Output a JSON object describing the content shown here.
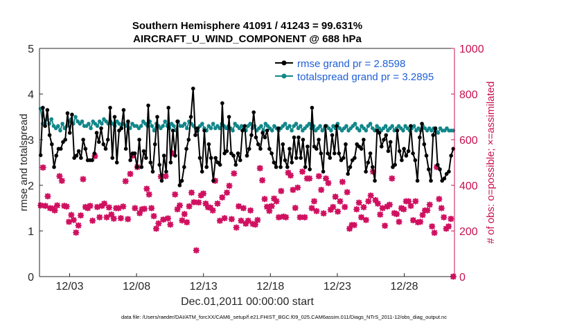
{
  "chart_data": {
    "type": "line",
    "title_line1": "Southern Hemisphere 41091 / 41243 = 99.631%",
    "title_line2": "AIRCRAFT_U_WIND_COMPONENT @ 688 hPa",
    "xlabel": "Dec.01,2011 00:00:00 start",
    "ylabel_left": "rmse and totalspread",
    "ylabel_right": "# of obs: o=possible; ×=assimilated",
    "footer": "data file: /Users/raeder/DAI/ATM_forcXX/CAM6_setup/f.e21.FHIST_BGC.f09_025.CAM6assim.011/Diags_NTrS_2011-12/obs_diag_output.nc",
    "xlim": [
      0.75,
      31.75
    ],
    "ylim_left": [
      0,
      5
    ],
    "ylim_right": [
      0,
      1000
    ],
    "xticks": [
      3,
      8,
      13,
      18,
      23,
      28
    ],
    "xtick_labels": [
      "12/03",
      "12/08",
      "12/13",
      "12/18",
      "12/23",
      "12/28"
    ],
    "yticks_left": [
      "0",
      "1",
      "2",
      "3",
      "4",
      "5"
    ],
    "yticks_right": [
      "0",
      "200",
      "400",
      "600",
      "800",
      "1000"
    ],
    "colors": {
      "rmse": "#000000",
      "spread": "#12878a",
      "obs": "#d01060",
      "legend_text": "#1f5fd6",
      "right_axis": "#c8104f"
    },
    "series": [
      {
        "name": "rmse",
        "legend": "rmse grand pr = 2.8598",
        "axis": "left",
        "values": [
          2.66,
          3.7,
          3.3,
          3.65,
          3.1,
          2.9,
          2.4,
          2.65,
          2.8,
          2.8,
          2.95,
          3.0,
          3.58,
          3.15,
          3.55,
          2.6,
          2.65,
          2.75,
          2.6,
          3.0,
          2.8,
          2.55,
          2.55,
          2.55,
          2.7,
          3.15,
          2.95,
          3.25,
          2.9,
          2.8,
          3.0,
          3.7,
          2.6,
          3.5,
          2.5,
          3.2,
          3.25,
          3.65,
          2.8,
          3.4,
          2.55,
          2.7,
          2.7,
          2.4,
          3.0,
          2.4,
          2.75,
          2.6,
          3.75,
          2.5,
          2.3,
          2.9,
          3.5,
          2.45,
          2.1,
          2.65,
          2.3,
          3.7,
          2.5,
          3.2,
          2.65,
          3.4,
          2.0,
          2.1,
          2.4,
          2.8,
          3.0,
          3.5,
          4.12,
          3.1,
          3.25,
          2.6,
          2.3,
          3.2,
          2.4,
          2.9,
          2.6,
          2.1,
          2.6,
          2.5,
          2.45,
          3.8,
          2.7,
          2.75,
          3.5,
          2.7,
          2.65,
          2.45,
          2.7,
          2.55,
          3.2,
          3.3,
          2.65,
          2.8,
          3.1,
          3.6,
          3.05,
          2.9,
          2.8,
          3.15,
          3.05,
          3.2,
          2.8,
          2.7,
          2.5,
          2.4,
          3.25,
          2.4,
          2.9,
          2.55,
          2.4,
          2.8,
          2.5,
          3.05,
          2.6,
          3.05,
          2.6,
          3.0,
          2.4,
          2.85,
          2.35,
          3.7,
          2.85,
          2.8,
          3.0,
          2.7,
          2.3,
          3.3,
          2.7,
          2.6,
          3.1,
          2.7,
          3.3,
          2.7,
          2.55,
          2.6,
          2.9,
          2.25,
          2.4,
          2.55,
          2.6,
          2.9,
          2.85,
          2.8,
          3.0,
          2.3,
          2.5,
          2.7,
          2.4,
          2.1,
          3.2,
          3.15,
          2.85,
          3.0,
          3.1,
          2.75,
          2.95,
          2.4,
          2.45,
          3.2,
          2.75,
          2.55,
          2.8,
          2.65,
          2.75,
          3.3,
          2.7,
          2.55,
          2.1,
          3.05,
          3.35,
          2.9,
          2.65,
          2.35,
          2.1,
          3.1,
          3.25,
          2.45,
          2.35,
          2.1,
          2.15,
          2.25,
          2.3,
          2.65,
          2.8
        ]
      },
      {
        "name": "totalspread",
        "legend": "totalspread grand pr = 3.2895",
        "axis": "left",
        "values": [
          3.68,
          3.35,
          3.35,
          3.45,
          3.35,
          3.45,
          3.3,
          3.25,
          3.3,
          3.2,
          3.35,
          3.25,
          3.3,
          3.4,
          3.45,
          3.35,
          3.5,
          3.4,
          3.35,
          3.4,
          3.3,
          3.3,
          3.35,
          3.25,
          3.4,
          3.35,
          3.3,
          3.4,
          3.35,
          3.45,
          3.4,
          3.35,
          3.4,
          3.35,
          3.3,
          3.4,
          3.35,
          3.25,
          3.35,
          3.3,
          3.35,
          3.25,
          3.35,
          3.3,
          3.3,
          3.25,
          3.3,
          3.4,
          3.35,
          3.3,
          3.4,
          3.3,
          3.2,
          3.35,
          3.3,
          3.25,
          3.3,
          3.4,
          3.3,
          3.25,
          3.35,
          3.3,
          3.2,
          3.4,
          3.3,
          3.3,
          3.35,
          3.25,
          3.4,
          3.35,
          3.3,
          3.25,
          3.2,
          3.3,
          3.35,
          3.25,
          3.2,
          3.3,
          3.25,
          3.35,
          3.25,
          3.3,
          3.25,
          3.35,
          3.3,
          3.25,
          3.3,
          3.25,
          3.2,
          3.35,
          3.3,
          3.25,
          3.3,
          3.25,
          3.2,
          3.3,
          3.35,
          3.25,
          3.3,
          3.2,
          3.25,
          3.3,
          3.2,
          3.35,
          3.3,
          3.25,
          3.2,
          3.3,
          3.25,
          3.2,
          3.25,
          3.3,
          3.35,
          3.25,
          3.3,
          3.2,
          3.3,
          3.35,
          3.25,
          3.3,
          3.2,
          3.25,
          3.3,
          3.35,
          3.25,
          3.3,
          3.2,
          3.25,
          3.3,
          3.2,
          3.25,
          3.3,
          3.25,
          3.2,
          3.3,
          3.25,
          3.35,
          3.25,
          3.2,
          3.25,
          3.3,
          3.2,
          3.25,
          3.3,
          3.35,
          3.25,
          3.2,
          3.3,
          3.25,
          3.2,
          3.3,
          3.35,
          3.25,
          3.2,
          3.3,
          3.25,
          3.2,
          3.25,
          3.3,
          3.2,
          3.25,
          3.3,
          3.2,
          3.25,
          3.3,
          3.25,
          3.2,
          3.3,
          3.25,
          3.2,
          3.25,
          3.3,
          3.2,
          3.25,
          3.2,
          3.3,
          3.25,
          3.2,
          3.25,
          3.2,
          3.25,
          3.2,
          3.15,
          3.25,
          3.2,
          3.2,
          3.25,
          3.2,
          3.2,
          3.2
        ]
      },
      {
        "name": "obs_assimilated",
        "axis": "right",
        "values": [
          312,
          478,
          310,
          352,
          300,
          298,
          290,
          312,
          440,
          420,
          310,
          307,
          240,
          270,
          248,
          193,
          224,
          268,
          427,
          305,
          300,
          310,
          245,
          528,
          305,
          260,
          310,
          320,
          260,
          303,
          272,
          254,
          300,
          300,
          256,
          307,
          418,
          252,
          450,
          530,
          300,
          480,
          278,
          295,
          297,
          385,
          360,
          300,
          265,
          210,
          233,
          438,
          250,
          440,
          255,
          228,
          540,
          360,
          295,
          312,
          246,
          274,
          238,
          308,
          368,
          326,
          115,
          325,
          356,
          364,
          320,
          304,
          302,
          290,
          420,
          320,
          245,
          347,
          256,
          368,
          398,
          252,
          452,
          215,
          308,
          245,
          300,
          232,
          245,
          290,
          231,
          228,
          248,
          475,
          422,
          340,
          306,
          288,
          309,
          342,
          330,
          260,
          375,
          263,
          260,
          455,
          443,
          380,
          301,
          390,
          260,
          460,
          260,
          430,
          430,
          300,
          330,
          287,
          440,
          380,
          277,
          430,
          410,
          293,
          305,
          350,
          285,
          330,
          415,
          305,
          370,
          210,
          226,
          226,
          295,
          324,
          260,
          304,
          248,
          330,
          355,
          460,
          335,
          320,
          272,
          300,
          223,
          307,
          315,
          430,
          278,
          274,
          240,
          300,
          295,
          330,
          330,
          310,
          247,
          330,
          238,
          240,
          270,
          290,
          290,
          315,
          220,
          192,
          480,
          340,
          300,
          260,
          210,
          220,
          253,
          0
        ]
      },
      {
        "name": "obs_possible",
        "axis": "right",
        "values": [
          312,
          478,
          310,
          352,
          300,
          298,
          290,
          312,
          440,
          420,
          310,
          307,
          240,
          270,
          248,
          193,
          224,
          268,
          427,
          305,
          300,
          310,
          245,
          528,
          305,
          260,
          310,
          320,
          260,
          303,
          272,
          254,
          300,
          300,
          256,
          307,
          418,
          252,
          450,
          530,
          300,
          480,
          278,
          295,
          297,
          385,
          360,
          300,
          265,
          210,
          233,
          438,
          250,
          440,
          255,
          228,
          540,
          360,
          295,
          312,
          246,
          274,
          238,
          308,
          368,
          326,
          115,
          325,
          356,
          364,
          320,
          304,
          302,
          290,
          420,
          320,
          245,
          347,
          256,
          368,
          398,
          252,
          452,
          215,
          308,
          245,
          300,
          232,
          245,
          290,
          231,
          228,
          248,
          475,
          422,
          340,
          306,
          288,
          309,
          342,
          330,
          260,
          375,
          263,
          260,
          455,
          443,
          380,
          301,
          390,
          260,
          460,
          260,
          430,
          430,
          300,
          330,
          287,
          440,
          380,
          277,
          430,
          410,
          293,
          305,
          350,
          285,
          330,
          415,
          305,
          370,
          210,
          226,
          226,
          295,
          324,
          260,
          304,
          248,
          330,
          355,
          460,
          335,
          320,
          272,
          300,
          223,
          307,
          315,
          430,
          278,
          274,
          240,
          300,
          295,
          330,
          330,
          310,
          247,
          330,
          238,
          240,
          270,
          290,
          290,
          315,
          220,
          192,
          480,
          340,
          300,
          260,
          210,
          220,
          253,
          0
        ]
      }
    ]
  }
}
